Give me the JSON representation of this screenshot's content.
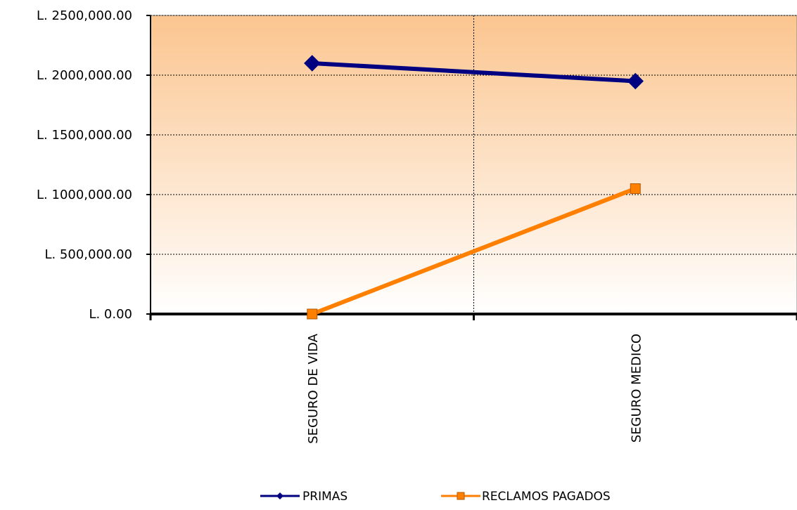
{
  "chart_data": {
    "type": "line",
    "categories": [
      "SEGURO DE VIDA",
      "SEGURO MEDICO"
    ],
    "series": [
      {
        "name": "PRIMAS",
        "values": [
          2100000,
          1950000
        ],
        "color": "#000080",
        "marker": "diamond"
      },
      {
        "name": "RECLAMOS PAGADOS",
        "values": [
          0,
          1050000
        ],
        "color": "#FF7F00",
        "marker": "square"
      }
    ],
    "ylim": [
      0,
      2500000
    ],
    "yticks": [
      {
        "value": 0,
        "label": "L. 0.00"
      },
      {
        "value": 500000,
        "label": "L. 500,000.00"
      },
      {
        "value": 1000000,
        "label": "L. 1000,000.00"
      },
      {
        "value": 1500000,
        "label": "L. 1500,000.00"
      },
      {
        "value": 2000000,
        "label": "L. 2000,000.00"
      },
      {
        "value": 2500000,
        "label": "L. 2500,000.00"
      }
    ],
    "grid": true,
    "legend": "bottom",
    "background_gradient": [
      "#FBC58F",
      "#FFFFFF"
    ]
  }
}
